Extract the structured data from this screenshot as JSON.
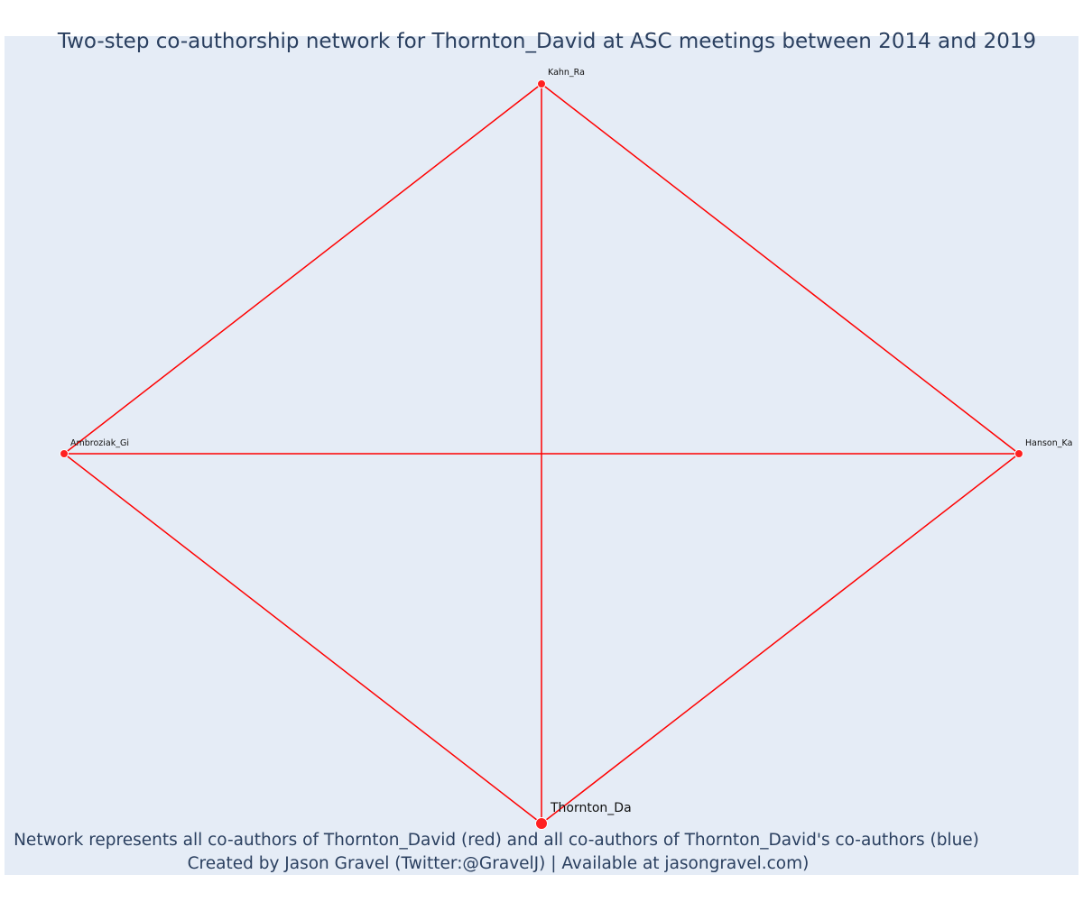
{
  "title": "Two-step co-authorship network for Thornton_David at ASC meetings between 2014 and 2019",
  "caption": {
    "line1": "Network represents all co-authors of Thornton_David (red) and all co-authors of Thornton_David's co-authors (blue)",
    "line2": "Created by Jason Gravel (Twitter:@GravelJ) | Available at jasongravel.com)"
  },
  "colors": {
    "background": "#e5ecf6",
    "edge": "#ff0000",
    "node": "#ff2020",
    "node_outline": "#ffffff",
    "title": "#2a3f5f"
  },
  "network": {
    "nodes": [
      {
        "id": "kahn",
        "label": "Kahn_Ra",
        "group": "co-author",
        "focal": false
      },
      {
        "id": "ambroziak",
        "label": "Ambroziak_Gi",
        "group": "co-author",
        "focal": false
      },
      {
        "id": "hanson",
        "label": "Hanson_Ka",
        "group": "co-author",
        "focal": false
      },
      {
        "id": "thornton",
        "label": "Thornton_Da",
        "group": "focal",
        "focal": true
      }
    ],
    "edges": [
      {
        "source": "kahn",
        "target": "ambroziak"
      },
      {
        "source": "kahn",
        "target": "hanson"
      },
      {
        "source": "kahn",
        "target": "thornton"
      },
      {
        "source": "ambroziak",
        "target": "hanson"
      },
      {
        "source": "ambroziak",
        "target": "thornton"
      },
      {
        "source": "hanson",
        "target": "thornton"
      }
    ]
  }
}
